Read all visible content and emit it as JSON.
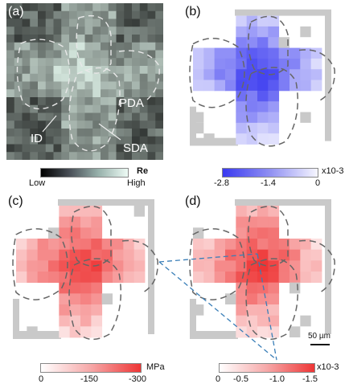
{
  "panels": {
    "a": {
      "label": "(a)"
    },
    "b": {
      "label": "(b)"
    },
    "c": {
      "label": "(c)"
    },
    "d": {
      "label": "(d)"
    }
  },
  "annotations": {
    "pda": "PDA",
    "id": "ID",
    "sda": "SDA"
  },
  "colorbar_a": {
    "unit": "Re",
    "low": "Low",
    "high": "High"
  },
  "colorbar_b": {
    "ticks": [
      "-2.8",
      "-1.4",
      "0"
    ],
    "unit": "x10-3"
  },
  "colorbar_c": {
    "ticks": [
      "0",
      "-150",
      "-300"
    ],
    "unit": "MPa"
  },
  "colorbar_d": {
    "ticks": [
      "0",
      "-0.5",
      "-1.0",
      "-1.5"
    ],
    "unit": "x10-3"
  },
  "scale_bar": {
    "label": "50 µm"
  },
  "colors": {
    "blue": "#3a3af0",
    "red": "#ee3535",
    "gray": "#c9c9c9",
    "dashed": "#666666",
    "blueline": "#3a7fb8"
  }
}
